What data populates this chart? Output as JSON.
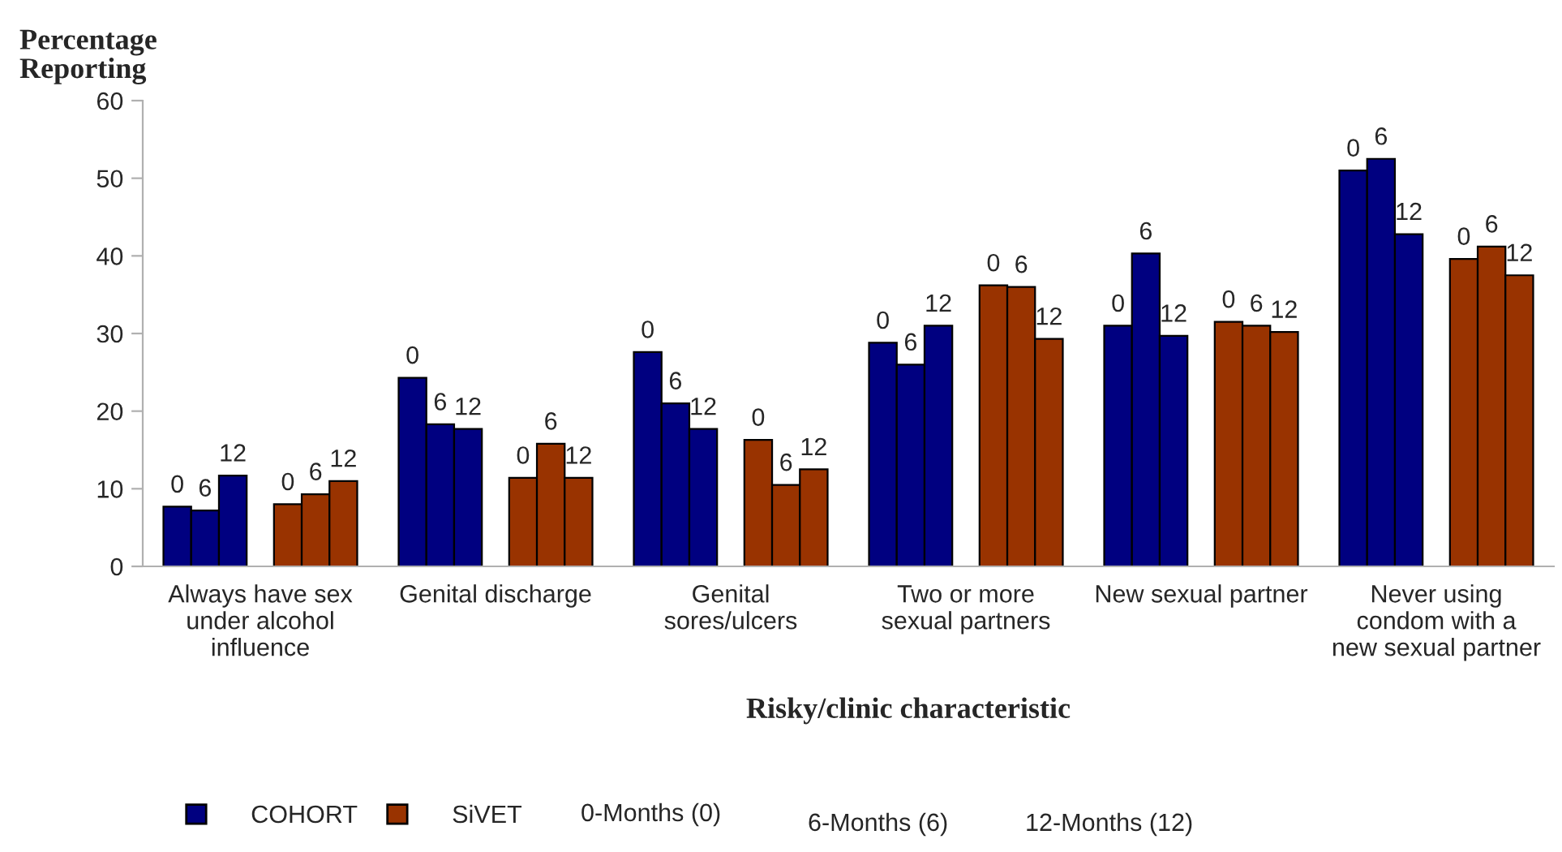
{
  "chart_data": {
    "type": "bar",
    "ylabel": "Percentage\nReporting",
    "xlabel": "Risky/clinic characteristic",
    "categories": [
      "Always have sex\nunder alcohol\ninfluence",
      "Genital discharge",
      "Genital\nsores/ulcers",
      "Two or more\nsexual partners",
      "New sexual partner",
      "Never using\ncondom with a\nnew sexual partner"
    ],
    "series": [
      {
        "name": "COHORT",
        "color": "#000080",
        "values": [
          7.7,
          24.3,
          27.6,
          28.8,
          31.0,
          51.0
        ]
      },
      {
        "color": "#000080",
        "values": [
          7.2,
          18.3,
          21.0,
          26.0,
          40.3,
          52.5
        ]
      },
      {
        "color": "#000080",
        "values": [
          11.7,
          17.7,
          17.7,
          31.0,
          29.7,
          42.8
        ]
      },
      {
        "name": "SiVET",
        "color": "#993300",
        "values": [
          8.0,
          11.4,
          16.3,
          36.2,
          31.5,
          39.6
        ]
      },
      {
        "color": "#993300",
        "values": [
          9.3,
          15.8,
          10.5,
          36.0,
          31.0,
          41.2
        ]
      },
      {
        "color": "#993300",
        "values": [
          11.0,
          11.4,
          12.5,
          29.3,
          30.2,
          37.5
        ]
      }
    ],
    "ylim": [
      0,
      60
    ],
    "yticks": [
      0,
      10,
      20,
      30,
      40,
      50,
      60
    ],
    "legend": "bottom",
    "annotations": [
      "0-Months (0)",
      "6-Months (6)",
      "12-Months (12)",
      "0",
      "6",
      "12",
      "0",
      "6",
      "12",
      "0",
      "6",
      "12",
      "0",
      "6",
      "12",
      "0",
      "6",
      "12",
      "0",
      "6",
      "12",
      "0",
      "6",
      "12",
      "0",
      "6",
      "12",
      "0",
      "6",
      "12",
      "0",
      "6",
      "12",
      "0",
      "6",
      "12",
      "0",
      "6",
      "12"
    ]
  }
}
